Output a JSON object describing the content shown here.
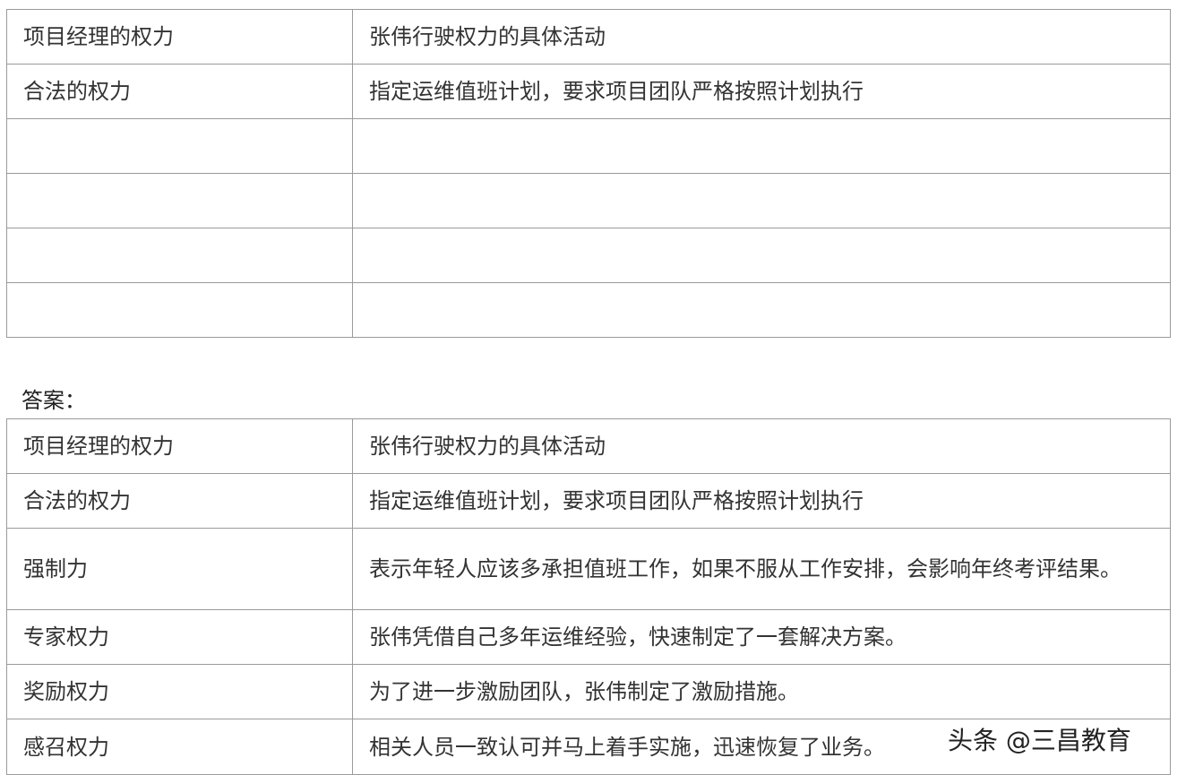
{
  "table1": {
    "header": [
      "项目经理的权力",
      "张伟行驶权力的具体活动"
    ],
    "rows": [
      [
        "合法的权力",
        "指定运维值班计划，要求项目团队严格按照计划执行"
      ]
    ]
  },
  "answer_label": "答案：",
  "table2": {
    "header": [
      "项目经理的权力",
      "张伟行驶权力的具体活动"
    ],
    "rows": [
      [
        "合法的权力",
        "指定运维值班计划，要求项目团队严格按照计划执行"
      ],
      [
        "强制力",
        "表示年轻人应该多承担值班工作，如果不服从工作安排，会影响年终考评结果。"
      ],
      [
        "专家权力",
        "张伟凭借自己多年运维经验，快速制定了一套解决方案。"
      ],
      [
        "奖励权力",
        "为了进一步激励团队，张伟制定了激励措施。"
      ],
      [
        "感召权力",
        "相关人员一致认可并马上着手实施，迅速恢复了业务。"
      ]
    ]
  },
  "watermark": "头条 @三昌教育"
}
